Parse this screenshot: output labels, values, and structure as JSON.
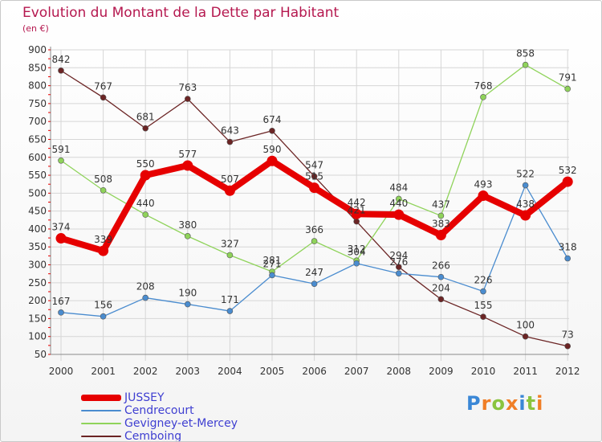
{
  "header": {
    "title": "Evolution du Montant de la Dette par Habitant",
    "unit": "(en €)"
  },
  "logo": {
    "letters": [
      "P",
      "r",
      "o",
      "x",
      "i",
      "t",
      "i"
    ],
    "colors": [
      "#3a87d6",
      "#f07e26",
      "#8ac43f",
      "#f07e26",
      "#3a87d6",
      "#8ac43f",
      "#f07e26"
    ]
  },
  "chart_data": {
    "type": "line",
    "categories": [
      "2000",
      "2001",
      "2002",
      "2003",
      "2004",
      "2005",
      "2006",
      "2007",
      "2008",
      "2009",
      "2010",
      "2011",
      "2012"
    ],
    "yticks": [
      50,
      100,
      150,
      200,
      250,
      300,
      350,
      400,
      450,
      500,
      550,
      600,
      650,
      700,
      750,
      800,
      850,
      900
    ],
    "ylim": [
      50,
      900
    ],
    "grid": true,
    "legend_position": "bottom-left",
    "series": [
      {
        "name": "JUSSEY",
        "color": "#e60000",
        "values": [
          374,
          339,
          550,
          577,
          507,
          590,
          515,
          442,
          440,
          383,
          493,
          438,
          532
        ]
      },
      {
        "name": "Cendrecourt",
        "color": "#4a8ccf",
        "values": [
          167,
          156,
          208,
          190,
          171,
          271,
          247,
          304,
          276,
          266,
          226,
          522,
          318
        ]
      },
      {
        "name": "Gevigney-et-Mercey",
        "color": "#8fd35a",
        "values": [
          591,
          508,
          440,
          380,
          327,
          281,
          366,
          312,
          484,
          437,
          768,
          858,
          791
        ]
      },
      {
        "name": "Cemboing",
        "color": "#6b2424",
        "values": [
          842,
          767,
          681,
          763,
          643,
          674,
          547,
          421,
          294,
          204,
          155,
          100,
          73
        ]
      }
    ]
  }
}
